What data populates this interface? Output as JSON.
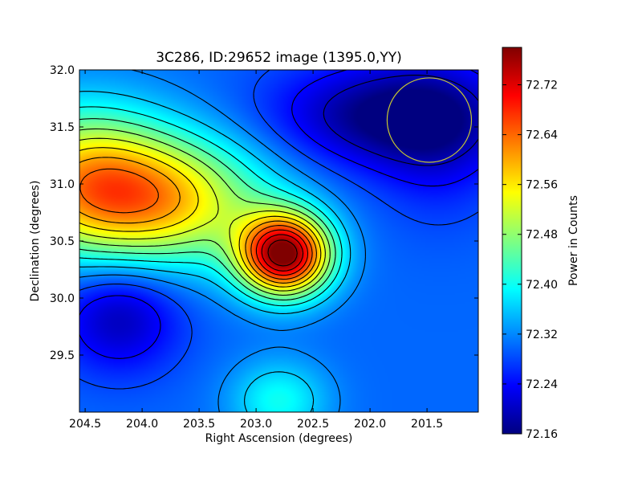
{
  "chart_data": {
    "type": "heatmap",
    "title": "3C286, ID:29652 image (1395.0,YY)",
    "xlabel": "Right Ascension (degrees)",
    "ylabel": "Declination (degrees)",
    "xlim": [
      204.55,
      201.05
    ],
    "ylim": [
      29.0,
      32.0
    ],
    "x_ticks": [
      "204.5",
      "204.0",
      "203.5",
      "203.0",
      "202.5",
      "202.0",
      "201.5"
    ],
    "y_ticks": [
      "29.5",
      "30.0",
      "30.5",
      "31.0",
      "31.5",
      "32.0"
    ],
    "colorbar": {
      "label": "Power in Counts",
      "range": [
        72.16,
        72.78
      ],
      "ticks": [
        "72.16",
        "72.24",
        "72.32",
        "72.40",
        "72.48",
        "72.56",
        "72.64",
        "72.72"
      ],
      "colormap": "jet"
    },
    "field": {
      "background": 72.3,
      "components": [
        {
          "ra": 202.75,
          "dec": 30.38,
          "amplitude": 0.47,
          "sigma_ra": 0.28,
          "sigma_dec": 0.25
        },
        {
          "ra": 203.8,
          "dec": 30.85,
          "amplitude": 0.25,
          "sigma_ra": 0.65,
          "sigma_dec": 0.4
        },
        {
          "ra": 204.55,
          "dec": 31.05,
          "amplitude": 0.22,
          "sigma_ra": 0.55,
          "sigma_dec": 0.45
        },
        {
          "ra": 202.8,
          "dec": 29.1,
          "amplitude": 0.1,
          "sigma_ra": 0.3,
          "sigma_dec": 0.25
        },
        {
          "ra": 201.85,
          "dec": 31.6,
          "amplitude": -0.14,
          "sigma_ra": 0.7,
          "sigma_dec": 0.32
        },
        {
          "ra": 204.2,
          "dec": 29.85,
          "amplitude": -0.11,
          "sigma_ra": 0.38,
          "sigma_dec": 0.35
        },
        {
          "ra": 201.4,
          "dec": 31.4,
          "amplitude": -0.06,
          "sigma_ra": 0.4,
          "sigma_dec": 0.5
        }
      ]
    },
    "contour_levels": [
      72.2,
      72.24,
      72.28,
      72.32,
      72.36,
      72.4,
      72.44,
      72.48,
      72.52,
      72.56,
      72.6,
      72.64,
      72.68,
      72.72,
      72.76
    ],
    "beam_circle": {
      "ra": 201.48,
      "dec": 31.56,
      "radius_deg": 0.37,
      "color": "#c8c832"
    }
  },
  "colors": {
    "contour": "#000000",
    "axes": "#000000",
    "background": "#ffffff"
  }
}
